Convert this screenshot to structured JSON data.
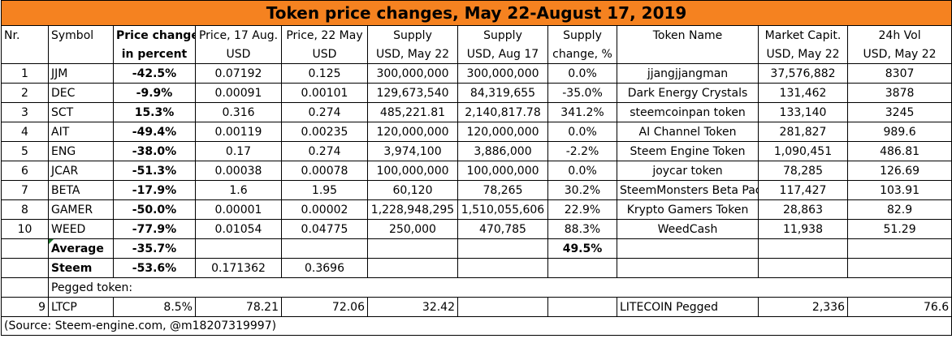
{
  "title": "Token price changes, May 22-August 17, 2019",
  "headers_row1": [
    "Nr.",
    "Symbol",
    "Price change",
    "Price, 17 Aug.",
    "Price, 22 May",
    "Supply",
    "Supply",
    "Supply",
    "Token Name",
    "Market Capit.",
    "24h Vol"
  ],
  "headers_row2": [
    "",
    "",
    "in percent",
    "USD",
    "USD",
    "USD, May 22",
    "USD, Aug 17",
    "change, %",
    "",
    "USD, May 22",
    "USD, May 22"
  ],
  "rows": [
    {
      "nr": "1",
      "symbol": "JJM",
      "change": "-42.5%",
      "p_aug": "0.07192",
      "p_may": "0.125",
      "s_may": "300,000,000",
      "s_aug": "300,000,000",
      "s_chg": "0.0%",
      "name": "jjangjjangman",
      "mcap": "37,576,882",
      "vol": "8307"
    },
    {
      "nr": "2",
      "symbol": "DEC",
      "change": "-9.9%",
      "p_aug": "0.00091",
      "p_may": "0.00101",
      "s_may": "129,673,540",
      "s_aug": "84,319,655",
      "s_chg": "-35.0%",
      "name": "Dark Energy Crystals",
      "mcap": "131,462",
      "vol": "3878"
    },
    {
      "nr": "3",
      "symbol": "SCT",
      "change": "15.3%",
      "p_aug": "0.316",
      "p_may": "0.274",
      "s_may": "485,221.81",
      "s_aug": "2,140,817.78",
      "s_chg": "341.2%",
      "name": "steemcoinpan token",
      "mcap": "133,140",
      "vol": "3245"
    },
    {
      "nr": "4",
      "symbol": "AIT",
      "change": "-49.4%",
      "p_aug": "0.00119",
      "p_may": "0.00235",
      "s_may": "120,000,000",
      "s_aug": "120,000,000",
      "s_chg": "0.0%",
      "name": "AI Channel Token",
      "mcap": "281,827",
      "vol": "989.6"
    },
    {
      "nr": "5",
      "symbol": "ENG",
      "change": "-38.0%",
      "p_aug": "0.17",
      "p_may": "0.274",
      "s_may": "3,974,100",
      "s_aug": "3,886,000",
      "s_chg": "-2.2%",
      "name": "Steem Engine Token",
      "mcap": "1,090,451",
      "vol": "486.81"
    },
    {
      "nr": "6",
      "symbol": "JCAR",
      "change": "-51.3%",
      "p_aug": "0.00038",
      "p_may": "0.00078",
      "s_may": "100,000,000",
      "s_aug": "100,000,000",
      "s_chg": "0.0%",
      "name": "joycar token",
      "mcap": "78,285",
      "vol": "126.69"
    },
    {
      "nr": "7",
      "symbol": "BETA",
      "change": "-17.9%",
      "p_aug": "1.6",
      "p_may": "1.95",
      "s_may": "60,120",
      "s_aug": "78,265",
      "s_chg": "30.2%",
      "name": "SteemMonsters Beta Pack",
      "mcap": "117,427",
      "vol": "103.91"
    },
    {
      "nr": "8",
      "symbol": "GAMER",
      "change": "-50.0%",
      "p_aug": "0.00001",
      "p_may": "0.00002",
      "s_may": "1,228,948,295",
      "s_aug": "1,510,055,606",
      "s_chg": "22.9%",
      "name": "Krypto Gamers Token",
      "mcap": "28,863",
      "vol": "82.9"
    },
    {
      "nr": "10",
      "symbol": "WEED",
      "change": "-77.9%",
      "p_aug": "0.01054",
      "p_may": "0.04775",
      "s_may": "250,000",
      "s_aug": "470,785",
      "s_chg": "88.3%",
      "name": "WeedCash",
      "mcap": "11,938",
      "vol": "51.29"
    }
  ],
  "average": {
    "label": "Average",
    "change": "-35.7%",
    "s_chg": "49.5%"
  },
  "steem": {
    "label": "Steem",
    "change": "-53.6%",
    "p_aug": "0.171362",
    "p_may": "0.3696"
  },
  "pegged_label": "Pegged token:",
  "pegged": {
    "nr": "9",
    "symbol": "LTCP",
    "change": "8.5%",
    "p_aug": "78.21",
    "p_may": "72.06",
    "s_may": "32.42",
    "name": "LITECOIN Pegged",
    "mcap": "2,336",
    "vol": "76.6"
  },
  "source": "(Source: Steem-engine.com, @m18207319997)"
}
